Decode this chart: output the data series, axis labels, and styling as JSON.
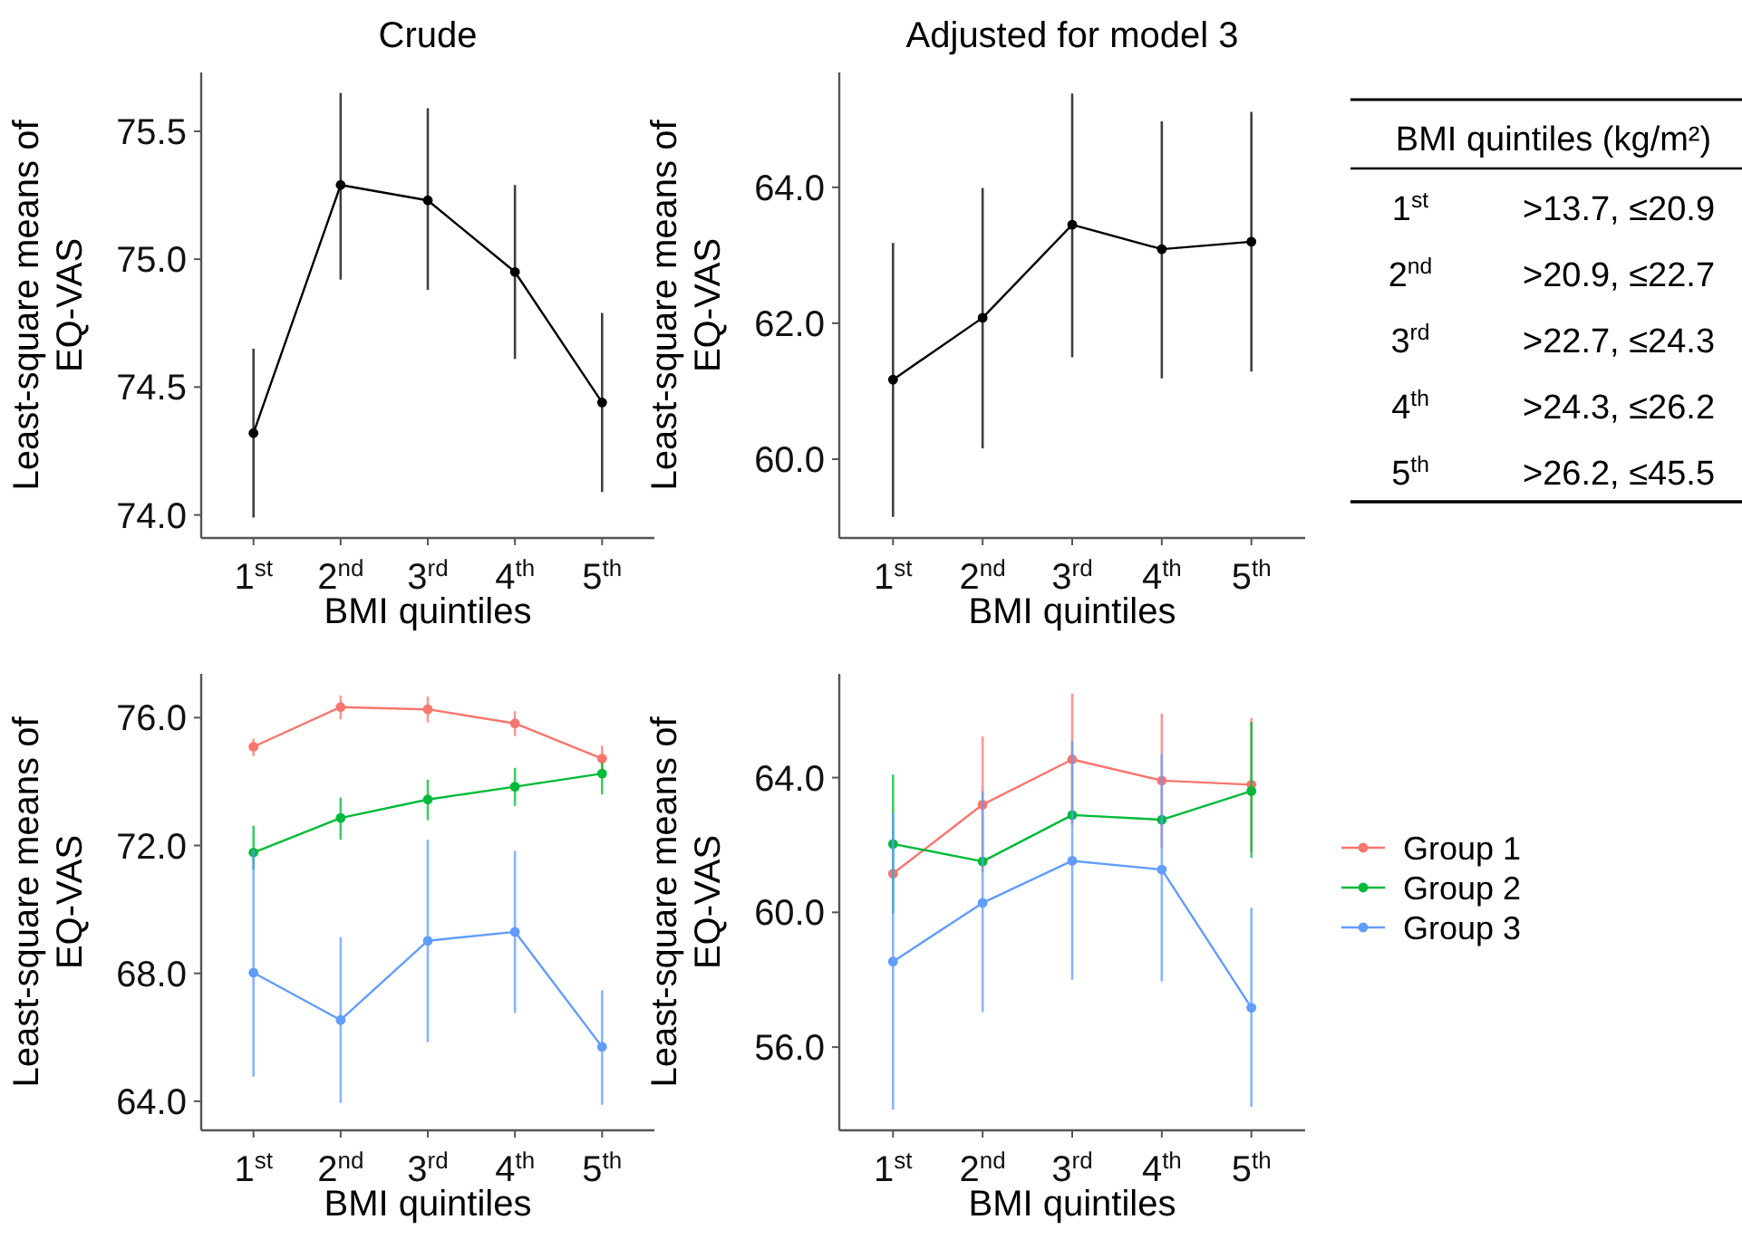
{
  "chart_data": [
    {
      "type": "line",
      "title": "Crude",
      "xlabel": "BMI quintiles",
      "ylabel": "Least-square means of\nEQ-VAS",
      "categories": [
        "1$^{st}$",
        "2$^{nd}$",
        "3$^{rd}$",
        "4$^{th}$",
        "5$^{th}$"
      ],
      "ylim": [
        73.91,
        75.73
      ],
      "yticks": [
        {
          "value": 74,
          "label": "74.0"
        },
        {
          "value": 74.5,
          "label": "74.5"
        },
        {
          "value": 75,
          "label": "75.0"
        },
        {
          "value": 75.5,
          "label": "75.5"
        }
      ],
      "marker": "circle",
      "series": [
        {
          "color": "#000000",
          "values": [
            74.32,
            75.29,
            75.23,
            74.95,
            74.44
          ],
          "errors": [
            [
              73.99,
              74.65
            ],
            [
              74.92,
              75.65
            ],
            [
              74.88,
              75.59
            ],
            [
              74.61,
              75.29
            ],
            [
              74.09,
              74.79
            ]
          ]
        }
      ]
    },
    {
      "type": "line",
      "title": "Adjusted for model 3",
      "xlabel": "BMI quintiles",
      "ylabel": "Least-square means of\nEQ-VAS",
      "categories": [
        "1$^{st}$",
        "2$^{nd}$",
        "3$^{rd}$",
        "4$^{th}$",
        "5$^{th}$"
      ],
      "ylim": [
        58.84,
        65.69
      ],
      "yticks": [
        {
          "value": 60,
          "label": "60.0"
        },
        {
          "value": 62,
          "label": "62.0"
        },
        {
          "value": 64,
          "label": "64.0"
        }
      ],
      "marker": "circle",
      "series": [
        {
          "color": "#000000",
          "values": [
            61.17,
            62.08,
            63.45,
            63.09,
            63.2
          ],
          "errors": [
            [
              59.15,
              63.18
            ],
            [
              60.16,
              63.99
            ],
            [
              61.5,
              65.38
            ],
            [
              61.19,
              64.97
            ],
            [
              61.29,
              65.11
            ]
          ]
        }
      ]
    },
    {
      "type": "other",
      "title": "BMI quintiles (kg/m²)",
      "categories": [
        "1$^{st}$",
        "2$^{nd}$",
        "3$^{rd}$",
        "4$^{th}$",
        "5$^{th}$"
      ],
      "annotations": [
        ">13.7, ≤20.9",
        ">20.9, ≤22.7",
        ">22.7, ≤24.3",
        ">24.3, ≤26.2",
        ">26.2, ≤45.5"
      ]
    },
    {
      "type": "line",
      "xlabel": "BMI quintiles",
      "ylabel": "Least-square means of\nEQ-VAS",
      "categories": [
        "1$^{st}$",
        "2$^{nd}$",
        "3$^{rd}$",
        "4$^{th}$",
        "5$^{th}$"
      ],
      "ylim": [
        63.09,
        77.37
      ],
      "yticks": [
        {
          "value": 64,
          "label": "64.0"
        },
        {
          "value": 68,
          "label": "68.0"
        },
        {
          "value": 72,
          "label": "72.0"
        },
        {
          "value": 76,
          "label": "76.0"
        }
      ],
      "marker": "circle",
      "series": [
        {
          "color": "#f8766d",
          "values": [
            75.09,
            76.33,
            76.26,
            75.82,
            74.72
          ],
          "errors": [
            [
              74.8,
              75.34
            ],
            [
              75.95,
              76.69
            ],
            [
              75.85,
              76.66
            ],
            [
              75.42,
              76.2
            ],
            [
              74.36,
              75.12
            ]
          ]
        },
        {
          "color": "#00ba38",
          "values": [
            71.78,
            72.86,
            73.44,
            73.84,
            74.25
          ],
          "errors": [
            [
              71.25,
              72.62
            ],
            [
              72.18,
              73.5
            ],
            [
              72.79,
              74.06
            ],
            [
              73.24,
              74.43
            ],
            [
              73.6,
              74.6
            ]
          ]
        },
        {
          "color": "#619cff",
          "values": [
            68.02,
            66.54,
            69.02,
            69.3,
            65.7
          ],
          "errors": [
            [
              64.77,
              71.87
            ],
            [
              63.95,
              69.13
            ],
            [
              65.85,
              72.18
            ],
            [
              66.76,
              71.83
            ],
            [
              63.89,
              67.47
            ]
          ]
        }
      ]
    },
    {
      "type": "line",
      "xlabel": "BMI quintiles",
      "ylabel": "Least-square means of\nEQ-VAS",
      "categories": [
        "1$^{st}$",
        "2$^{nd}$",
        "3$^{rd}$",
        "4$^{th}$",
        "5$^{th}$"
      ],
      "ylim": [
        53.53,
        67.08
      ],
      "yticks": [
        {
          "value": 56,
          "label": "56.0"
        },
        {
          "value": 60,
          "label": "60.0"
        },
        {
          "value": 64,
          "label": "64.0"
        }
      ],
      "marker": "circle",
      "legend": "right",
      "series": [
        {
          "name": "Group 1",
          "color": "#f8766d",
          "values": [
            61.15,
            63.2,
            64.54,
            63.91,
            63.79
          ],
          "errors": [
            null,
            [
              61.18,
              65.22
            ],
            [
              62.6,
              66.49
            ],
            [
              61.9,
              65.9
            ],
            [
              61.8,
              65.77
            ]
          ]
        },
        {
          "name": "Group 2",
          "color": "#00ba38",
          "values": [
            62.03,
            61.51,
            62.89,
            62.75,
            63.6
          ],
          "errors": [
            [
              59.97,
              64.09
            ],
            null,
            null,
            null,
            [
              61.62,
              65.65
            ]
          ]
        },
        {
          "name": "Group 3",
          "color": "#619cff",
          "values": [
            58.54,
            60.28,
            61.53,
            61.27,
            57.17
          ],
          "errors": [
            [
              54.14,
              62.94
            ],
            [
              57.04,
              63.6
            ],
            [
              58.0,
              65.08
            ],
            [
              57.95,
              64.7
            ],
            [
              54.23,
              60.14
            ]
          ]
        }
      ]
    }
  ]
}
